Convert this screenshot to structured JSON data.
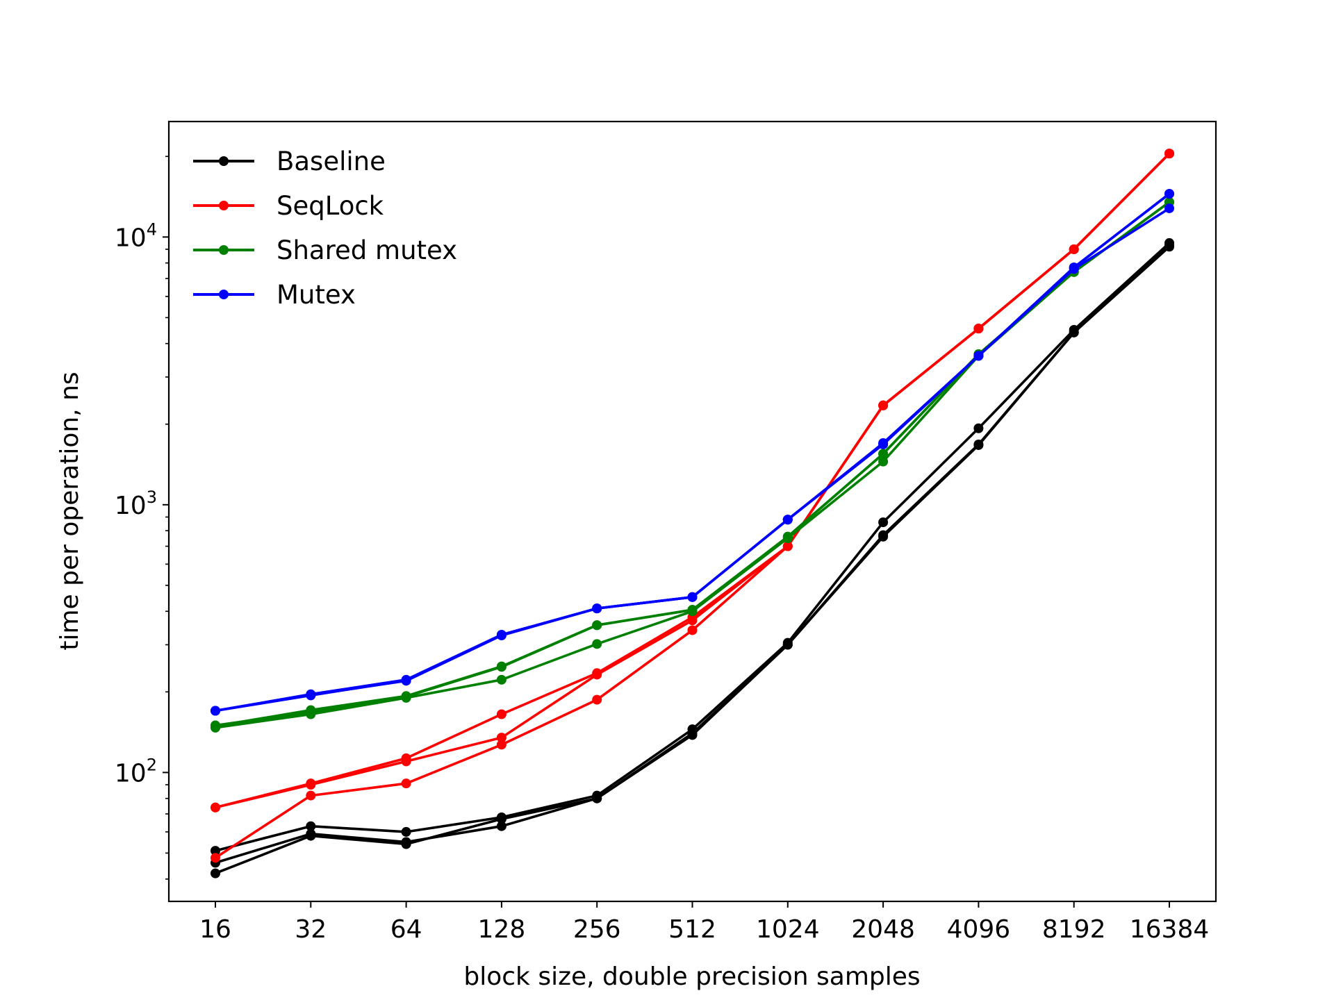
{
  "chart_data": {
    "type": "line",
    "title": "",
    "xlabel": "block size, double precision samples",
    "ylabel": "time per operation, ns",
    "xscale": "log2",
    "yscale": "log10",
    "categories": [
      16,
      32,
      64,
      128,
      256,
      512,
      1024,
      2048,
      4096,
      8192,
      16384
    ],
    "x_tick_labels": [
      "16",
      "32",
      "64",
      "128",
      "256",
      "512",
      "1024",
      "2048",
      "4096",
      "8192",
      "16384"
    ],
    "y_ticks": [
      {
        "value": 100,
        "base": "10",
        "exp": "2"
      },
      {
        "value": 1000,
        "base": "10",
        "exp": "3"
      },
      {
        "value": 10000,
        "base": "10",
        "exp": "4"
      }
    ],
    "ylim": [
      33,
      27000
    ],
    "grid": false,
    "legend": {
      "position": "top-left",
      "entries": [
        "Baseline",
        "SeqLock",
        "Shared mutex",
        "Mutex"
      ]
    },
    "series": [
      {
        "name": "Baseline",
        "color": "#000000",
        "runs": [
          [
            51,
            63,
            60,
            68,
            82,
            145,
            305,
            860,
            1930,
            4500,
            9500
          ],
          [
            46,
            59,
            55,
            63,
            80,
            140,
            300,
            770,
            1680,
            4400,
            9300
          ],
          [
            42,
            58,
            54,
            67,
            80,
            138,
            300,
            760,
            1670,
            4400,
            9200
          ]
        ]
      },
      {
        "name": "SeqLock",
        "color": "#ff0000",
        "runs": [
          [
            74,
            91,
            113,
            165,
            235,
            380,
            700,
            2350,
            4550,
            9000,
            20500
          ],
          [
            74,
            90,
            110,
            135,
            232,
            370,
            700,
            2350,
            4550,
            9000,
            20500
          ],
          [
            48,
            82,
            91,
            127,
            187,
            340,
            700,
            2350,
            4550,
            9000,
            20500
          ]
        ]
      },
      {
        "name": "Shared mutex",
        "color": "#008000",
        "runs": [
          [
            149,
            171,
            193,
            249,
            355,
            405,
            760,
            1550,
            3650,
            7400,
            13500
          ],
          [
            147,
            165,
            190,
            222,
            302,
            400,
            750,
            1450,
            3600,
            7400,
            13500
          ],
          [
            150,
            168,
            192,
            248,
            355,
            405,
            760,
            1550,
            3650,
            7400,
            13500
          ]
        ]
      },
      {
        "name": "Mutex",
        "color": "#0000ff",
        "runs": [
          [
            170,
            196,
            222,
            327,
            410,
            452,
            880,
            1700,
            3600,
            7700,
            14500
          ],
          [
            170,
            195,
            220,
            325,
            410,
            452,
            880,
            1690,
            3600,
            7700,
            14500
          ],
          [
            170,
            194,
            221,
            326,
            410,
            452,
            880,
            1680,
            3600,
            7600,
            12800
          ]
        ]
      }
    ]
  }
}
